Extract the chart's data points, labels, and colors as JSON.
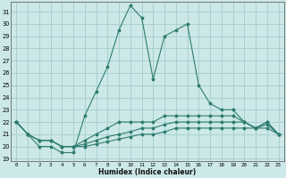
{
  "xlabel": "Humidex (Indice chaleur)",
  "ylabel": "",
  "background_color": "#cce8e8",
  "line_color": "#2e7d6e",
  "grid_color": "#a8d0d0",
  "xlim": [
    -0.5,
    23.5
  ],
  "ylim": [
    18.8,
    31.8
  ],
  "yticks": [
    19,
    20,
    21,
    22,
    23,
    24,
    25,
    26,
    27,
    28,
    29,
    30,
    31
  ],
  "xticks": [
    0,
    1,
    2,
    3,
    4,
    5,
    6,
    7,
    8,
    9,
    10,
    11,
    12,
    13,
    14,
    15,
    16,
    17,
    18,
    19,
    20,
    21,
    22,
    23
  ],
  "series": [
    [
      22.0,
      21.0,
      20.0,
      20.0,
      19.5,
      19.5,
      22.5,
      24.5,
      26.5,
      29.5,
      31.5,
      30.5,
      25.5,
      29.0,
      29.5,
      30.0,
      25.0,
      23.5,
      23.0,
      23.0,
      22.0,
      21.5,
      22.0,
      21.0
    ],
    [
      22.0,
      21.0,
      20.5,
      20.5,
      20.0,
      20.0,
      20.5,
      21.0,
      21.5,
      22.0,
      22.0,
      22.0,
      22.0,
      22.5,
      22.5,
      22.5,
      22.5,
      22.5,
      22.5,
      22.5,
      22.0,
      21.5,
      22.0,
      21.0
    ],
    [
      22.0,
      21.0,
      20.5,
      20.5,
      20.0,
      20.0,
      20.2,
      20.5,
      20.8,
      21.0,
      21.2,
      21.5,
      21.5,
      21.8,
      22.0,
      22.0,
      22.0,
      22.0,
      22.0,
      22.0,
      22.0,
      21.5,
      21.8,
      21.0
    ],
    [
      22.0,
      21.0,
      20.5,
      20.5,
      20.0,
      20.0,
      20.0,
      20.2,
      20.4,
      20.6,
      20.8,
      21.0,
      21.0,
      21.2,
      21.5,
      21.5,
      21.5,
      21.5,
      21.5,
      21.5,
      21.5,
      21.5,
      21.5,
      21.0
    ]
  ],
  "figsize": [
    3.2,
    2.0
  ],
  "dpi": 100
}
